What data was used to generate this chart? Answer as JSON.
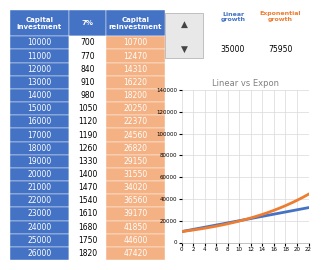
{
  "table": {
    "col1_values": [
      10000,
      11000,
      12000,
      13000,
      14000,
      15000,
      16000,
      17000,
      18000,
      19000,
      20000,
      21000,
      22000,
      23000,
      24000,
      25000,
      26000
    ],
    "col2_values": [
      700,
      770,
      840,
      910,
      980,
      1050,
      1120,
      1190,
      1260,
      1330,
      1400,
      1470,
      1540,
      1610,
      1680,
      1750,
      1820
    ],
    "col3_values": [
      10700,
      12470,
      14310,
      16220,
      18200,
      20250,
      22370,
      24560,
      26820,
      29150,
      31550,
      34020,
      36560,
      39170,
      41850,
      44600,
      47420
    ],
    "header_bg": "#4472C4",
    "header_text": "#FFFFFF",
    "col1_bg": "#4472C4",
    "col1_text": "#FFFFFF",
    "col2_bg": "#FFFFFF",
    "col2_text": "#000000",
    "col3_bg": "#F4B183",
    "col3_text": "#FFFFFF"
  },
  "summary_table": {
    "values": [
      35000,
      75950
    ],
    "header_text_color_linear": "#4472C4",
    "header_text_color_exp": "#ED7D31"
  },
  "chart": {
    "title": "Linear vs Expon",
    "title_color": "#808080",
    "x_values": [
      0,
      1,
      2,
      3,
      4,
      5,
      6,
      7,
      8,
      9,
      10,
      11,
      12,
      13,
      14,
      15,
      16,
      17,
      18,
      19,
      20,
      21,
      22
    ],
    "linear_y": [
      10000,
      11000,
      12000,
      13000,
      14000,
      15000,
      16000,
      17000,
      18000,
      19000,
      20000,
      21000,
      22000,
      23000,
      24000,
      25000,
      26000,
      27000,
      28000,
      29000,
      30000,
      31000,
      32000
    ],
    "exp_y": [
      10000,
      10700,
      11449,
      12250,
      13108,
      14026,
      15007,
      16058,
      17182,
      18385,
      19672,
      21049,
      22522,
      24098,
      25785,
      27590,
      29522,
      31588,
      33799,
      36165,
      38697,
      41406,
      44304
    ],
    "linear_color": "#4472C4",
    "exp_color": "#ED7D31",
    "xlim": [
      0,
      22
    ],
    "ylim": [
      0,
      140000
    ],
    "yticks": [
      0,
      20000,
      40000,
      60000,
      80000,
      100000,
      120000,
      140000
    ],
    "xticks": [
      0,
      2,
      4,
      6,
      8,
      10,
      12,
      14,
      16,
      18,
      20,
      22
    ],
    "grid_color": "#D9D9D9",
    "bg_color": "#FFFFFF",
    "line_width": 2.0
  }
}
